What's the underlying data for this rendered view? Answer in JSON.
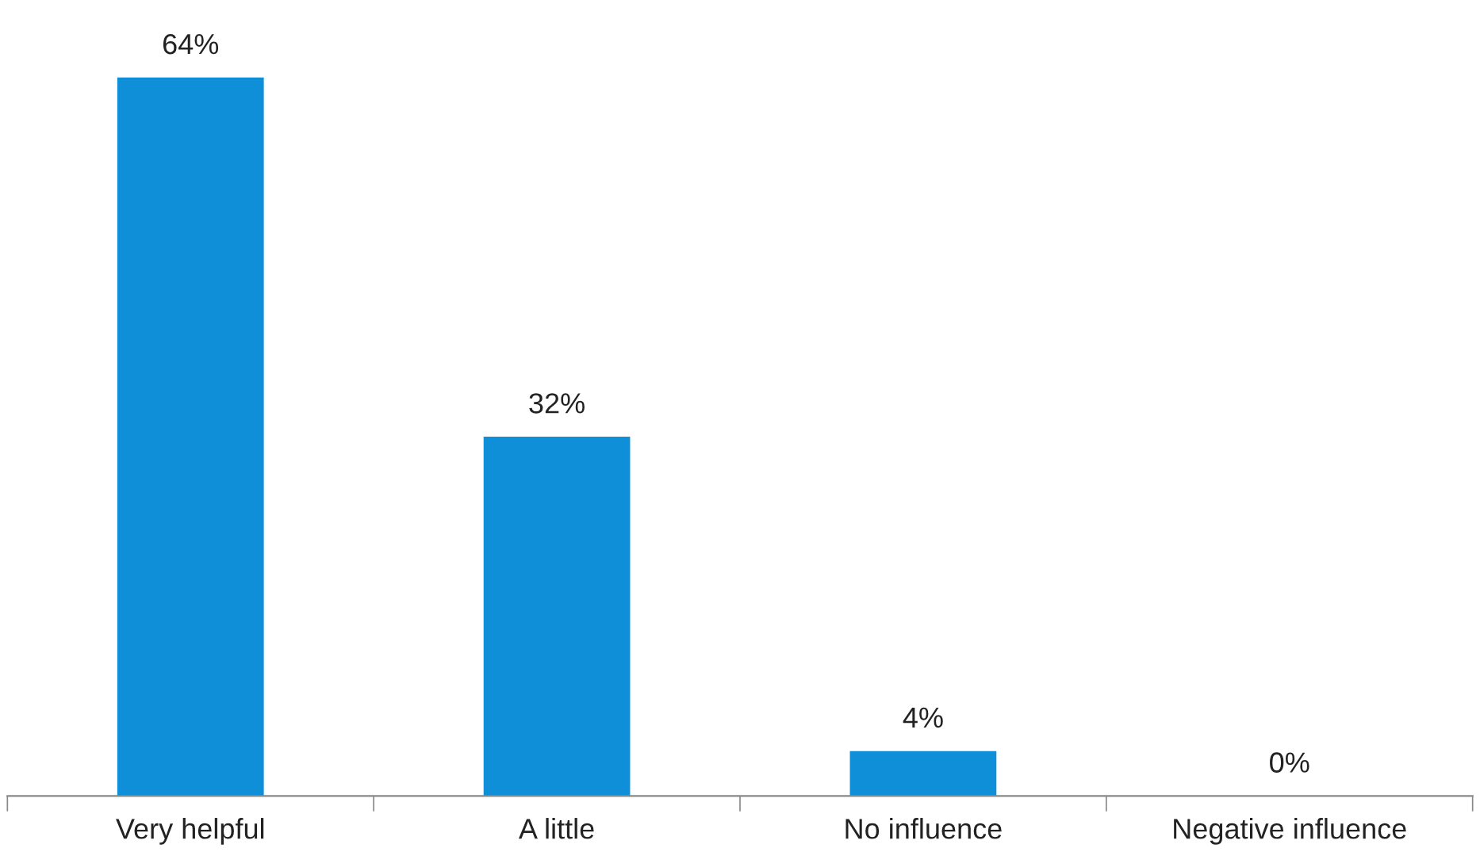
{
  "chart_data": {
    "type": "bar",
    "categories": [
      "Very helpful",
      "A little",
      "No influence",
      "Negative influence"
    ],
    "values": [
      64,
      32,
      4,
      0
    ],
    "value_labels": [
      "64%",
      "32%",
      "4%",
      "0%"
    ],
    "color": "#0f8fd8",
    "grid": false,
    "legend": false
  }
}
